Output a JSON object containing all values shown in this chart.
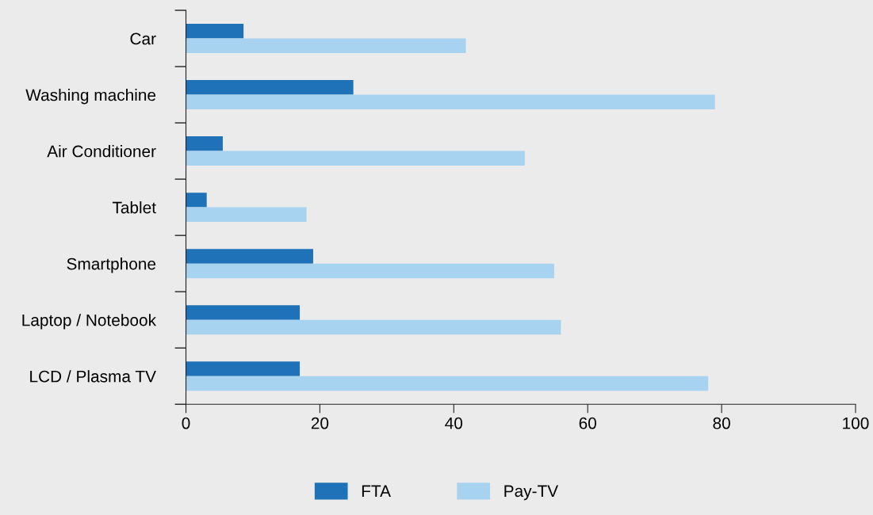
{
  "chart_data": {
    "type": "bar",
    "orientation": "horizontal",
    "categories": [
      "Car",
      "Washing machine",
      "Air Conditioner",
      "Tablet",
      "Smartphone",
      "Laptop / Notebook",
      "LCD / Plasma TV"
    ],
    "series": [
      {
        "name": "FTA",
        "color": "#1f72b8",
        "values": [
          8.6,
          25,
          5.5,
          3.1,
          19,
          17,
          17
        ]
      },
      {
        "name": "Pay-TV",
        "color": "#a8d3f0",
        "values": [
          41.8,
          79,
          50.6,
          18,
          55,
          56,
          78
        ]
      }
    ],
    "xlim": [
      0,
      100
    ],
    "xticks": [
      0,
      20,
      40,
      60,
      80,
      100
    ],
    "grid": false,
    "legend": "bottom"
  }
}
